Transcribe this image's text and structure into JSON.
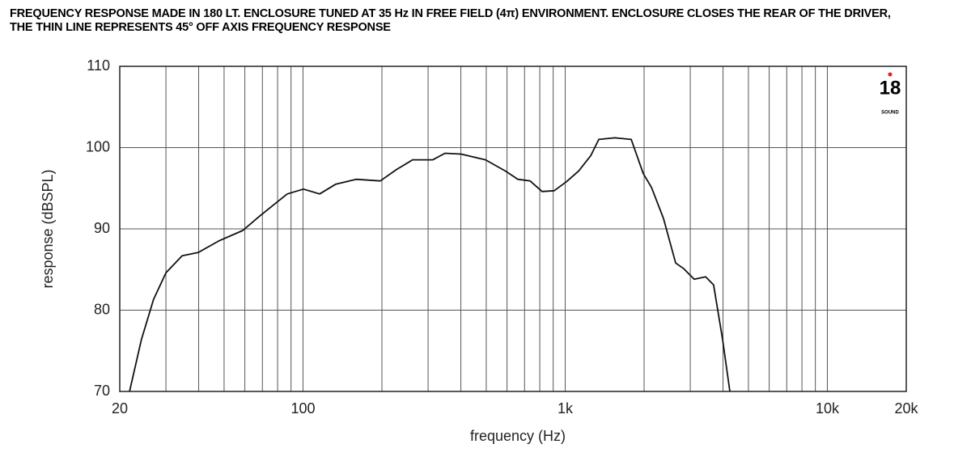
{
  "chart_data": {
    "type": "line",
    "title": "FREQUENCY RESPONSE MADE IN 180 LT. ENCLOSURE TUNED AT 35 Hz IN FREE FIELD (4π) ENVIRONMENT. ENCLOSURE CLOSES THE REAR OF THE DRIVER, THE THIN LINE REPRESENTS 45° OFF AXIS FREQUENCY RESPONSE",
    "x_label": "frequency (Hz)",
    "y_label": "response (dBSPL)",
    "x_scale": "log",
    "grid": true,
    "xlim": [
      20,
      20000
    ],
    "ylim": [
      70,
      110
    ],
    "xticks": [
      20,
      100,
      {
        "value": 1000,
        "label": "1k"
      },
      {
        "value": 10000,
        "label": "10k"
      },
      {
        "value": 20000,
        "label": "20k"
      }
    ],
    "x_minor_grid": [
      30,
      40,
      50,
      60,
      70,
      80,
      90,
      200,
      300,
      400,
      500,
      600,
      700,
      800,
      900,
      2000,
      3000,
      4000,
      5000,
      6000,
      7000,
      8000,
      9000
    ],
    "yticks": [
      70,
      80,
      90,
      100,
      110
    ],
    "logo": {
      "number": "18",
      "text": "SOUND"
    },
    "series": [
      {
        "color": "#111111",
        "x": [
          21.8,
          24.2,
          26.9,
          30,
          34.6,
          39.9,
          47.6,
          58.9,
          67.9,
          78.3,
          87.1,
          100.4,
          115.7,
          133.4,
          159.3,
          197.2,
          227.3,
          261.9,
          312.8,
          348,
          400.9,
          496.6,
          593,
          660,
          735,
          817,
          908,
          1011,
          1125,
          1251,
          1343,
          1548,
          1786,
          1986,
          2133,
          2371,
          2638,
          2833,
          3106,
          3434,
          3683,
          3984,
          4249
        ],
        "values": [
          70,
          76.4,
          81.3,
          84.6,
          86.7,
          87.1,
          88.5,
          89.8,
          91.5,
          93.1,
          94.3,
          94.9,
          94.3,
          95.5,
          96.1,
          95.9,
          97.3,
          98.5,
          98.5,
          99.3,
          99.2,
          98.5,
          97.1,
          96.1,
          95.9,
          94.6,
          94.7,
          95.8,
          97.1,
          99,
          101,
          101.2,
          101,
          96.8,
          95.1,
          91.3,
          85.8,
          85.1,
          83.8,
          84.1,
          83.1,
          76.4,
          70
        ]
      }
    ]
  }
}
